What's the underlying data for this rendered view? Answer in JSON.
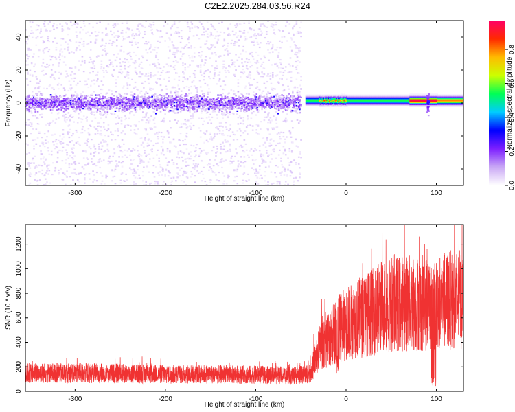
{
  "title": "C2E2.2025.284.03.56.R24",
  "chart_data": [
    {
      "type": "heatmap",
      "id": "spectrogram",
      "xlabel": "Height of straight line (km)",
      "ylabel": "Frequency (Hz)",
      "xlim": [
        -355,
        130
      ],
      "ylim": [
        -50,
        50
      ],
      "xticks": [
        -300,
        -200,
        -100,
        0,
        100
      ],
      "xtick_labels": [
        "-300",
        "-200",
        "-100",
        "0",
        "100"
      ],
      "yticks": [
        -40,
        -20,
        0,
        20,
        40
      ],
      "ytick_labels": [
        "-40",
        "-20",
        "0",
        "20",
        "40"
      ],
      "colorbar": {
        "label": "Normalized spectral amplitude",
        "range": [
          0,
          0.97
        ],
        "ticks": [
          0.0,
          0.2,
          0.4,
          0.6,
          0.8
        ],
        "tick_labels": [
          "0.0",
          "0.2",
          "0.4",
          "0.6",
          "0.8"
        ],
        "colors": [
          "#ffffff",
          "#c9a8f5",
          "#7d1fff",
          "#0000ff",
          "#00ccff",
          "#00ff55",
          "#ccff00",
          "#ffbb00",
          "#ff2a00",
          "#ff0066"
        ]
      },
      "regions": [
        {
          "name": "broadband noise",
          "x_range": [
            -355,
            -50
          ],
          "freq_spread": 50,
          "core_spread": 8,
          "core_level": 0.18
        },
        {
          "name": "narrow echo",
          "x_range": [
            -45,
            130
          ],
          "center_freq": 1.5,
          "bandwidth": 3,
          "peak_level": 0.95
        },
        {
          "name": "burst",
          "x": 90,
          "freq_spread": 12,
          "level": 0.3
        }
      ]
    },
    {
      "type": "line",
      "id": "snr",
      "xlabel": "Height of straight line (km)",
      "ylabel": "SNR (10 * v/v)",
      "xlim": [
        -355,
        130
      ],
      "ylim": [
        0,
        1360
      ],
      "xticks": [
        -300,
        -200,
        -100,
        0,
        100
      ],
      "xtick_labels": [
        "-300",
        "-200",
        "-100",
        "0",
        "100"
      ],
      "yticks": [
        0,
        200,
        400,
        600,
        800,
        1000,
        1200
      ],
      "ytick_labels": [
        "0",
        "200",
        "400",
        "600",
        "800",
        "1000",
        "1200"
      ],
      "series": [
        {
          "name": "SNR",
          "color": "#f03232",
          "baseline_x": [
            -355,
            -300,
            -250,
            -200,
            -150,
            -100,
            -60,
            -40,
            -32,
            -25,
            -20,
            -10,
            0,
            10,
            20,
            30,
            40,
            60,
            80,
            90,
            95,
            100,
            110,
            130
          ],
          "baseline_y": [
            150,
            150,
            145,
            140,
            140,
            135,
            130,
            140,
            300,
            420,
            430,
            500,
            550,
            580,
            620,
            650,
            700,
            720,
            720,
            720,
            720,
            730,
            740,
            750
          ],
          "spikes": [
            {
              "x": -27,
              "y": 750
            },
            {
              "x": 11,
              "y": 1060
            },
            {
              "x": 97,
              "y": 1340
            }
          ]
        }
      ]
    }
  ]
}
